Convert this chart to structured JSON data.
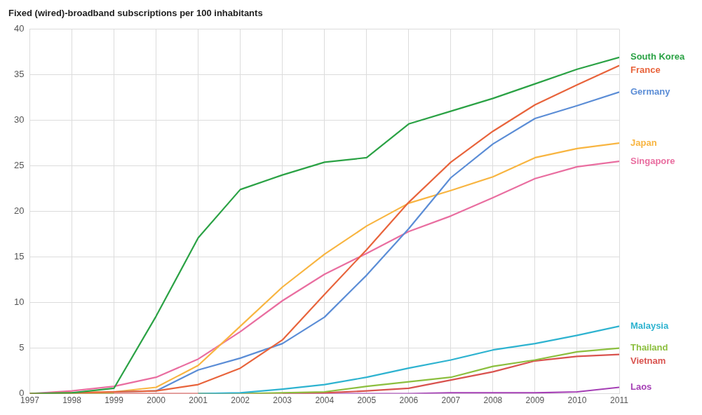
{
  "chart_data": {
    "type": "line",
    "title": "Fixed (wired)-broadband subscriptions per 100 inhabitants",
    "x": [
      1997,
      1998,
      1999,
      2000,
      2001,
      2002,
      2003,
      2004,
      2005,
      2006,
      2007,
      2008,
      2009,
      2010,
      2011
    ],
    "xlim": [
      1997,
      2011
    ],
    "xticks": [
      1997,
      1998,
      1999,
      2000,
      2001,
      2002,
      2003,
      2004,
      2005,
      2006,
      2007,
      2008,
      2009,
      2010,
      2011
    ],
    "ylim": [
      0,
      40
    ],
    "yticks": [
      0,
      5,
      10,
      15,
      20,
      25,
      30,
      35,
      40
    ],
    "grid": true,
    "marker": "none",
    "line_style": "solid",
    "series": [
      {
        "name": "South Korea",
        "color": "#2ba245",
        "values": [
          0,
          0.1,
          0.6,
          8.5,
          17.1,
          22.4,
          24.0,
          25.4,
          25.9,
          29.6,
          31.0,
          32.4,
          34.0,
          35.6,
          36.9
        ]
      },
      {
        "name": "France",
        "color": "#e8643c",
        "values": [
          0,
          0.1,
          0.2,
          0.3,
          1.0,
          2.8,
          5.9,
          10.9,
          15.8,
          21.0,
          25.4,
          28.8,
          31.7,
          33.9,
          36.0
        ]
      },
      {
        "name": "Germany",
        "color": "#5b8dd6",
        "values": [
          null,
          null,
          0.2,
          0.3,
          2.6,
          3.9,
          5.5,
          8.4,
          13.0,
          18.1,
          23.7,
          27.4,
          30.2,
          31.6,
          33.1
        ]
      },
      {
        "name": "Japan",
        "color": "#f8b541",
        "values": [
          0,
          0.1,
          0.2,
          0.7,
          3.1,
          7.4,
          11.7,
          15.3,
          18.4,
          20.9,
          22.3,
          23.8,
          25.9,
          26.9,
          27.5
        ]
      },
      {
        "name": "Singapore",
        "color": "#e96ea0",
        "values": [
          0,
          0.3,
          0.8,
          1.8,
          3.8,
          6.8,
          10.2,
          13.1,
          15.4,
          17.8,
          19.5,
          21.5,
          23.6,
          24.9,
          25.5
        ]
      },
      {
        "name": "Malaysia",
        "color": "#2eb3d0",
        "values": [
          null,
          null,
          null,
          null,
          0,
          0.1,
          0.5,
          1.0,
          1.8,
          2.8,
          3.7,
          4.8,
          5.5,
          6.4,
          7.4
        ]
      },
      {
        "name": "Thailand",
        "color": "#8cbf3f",
        "values": [
          0,
          0,
          0,
          null,
          0,
          0,
          0.1,
          0.2,
          0.8,
          1.3,
          1.8,
          3.0,
          3.7,
          4.6,
          5.0
        ]
      },
      {
        "name": "Vietnam",
        "color": "#d9534f",
        "values": [
          0,
          0,
          0,
          0,
          0,
          0,
          0,
          0.1,
          0.3,
          0.6,
          1.5,
          2.4,
          3.6,
          4.1,
          4.3
        ]
      },
      {
        "name": "Laos",
        "color": "#a53fb5",
        "values": [
          null,
          null,
          null,
          null,
          null,
          null,
          0,
          0,
          0,
          0,
          0.1,
          0.1,
          0.1,
          0.2,
          0.7
        ]
      }
    ]
  }
}
